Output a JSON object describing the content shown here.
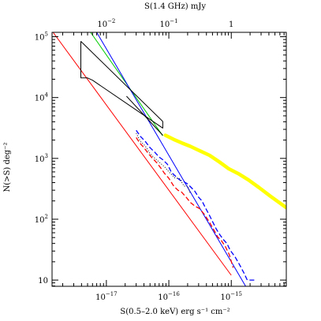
{
  "chart_data": {
    "type": "line",
    "xlabel_bottom": "S(0.5–2.0 keV)   erg s⁻¹ cm⁻²",
    "xlabel_top": "S(1.4 GHz)    mJy",
    "ylabel": "N(>S)   deg⁻²",
    "xscale": "log",
    "yscale": "log",
    "xlim": [
      1.35e-18,
      7.6e-15
    ],
    "ylim": [
      7.9,
      118000
    ],
    "bottom_ticks": [
      {
        "value": 1e-17,
        "base": "10",
        "exp": "−17"
      },
      {
        "value": 1e-16,
        "base": "10",
        "exp": "−16"
      },
      {
        "value": 1e-15,
        "base": "10",
        "exp": "−15"
      }
    ],
    "top_ticks": [
      {
        "value": 1e-17,
        "base": "10",
        "exp": "−2"
      },
      {
        "value": 1e-16,
        "base": "10",
        "exp": "−1"
      },
      {
        "value": 1e-15,
        "label": "1"
      }
    ],
    "left_ticks": [
      {
        "value": 10,
        "label": "10"
      },
      {
        "value": 100,
        "base": "10",
        "exp": "2"
      },
      {
        "value": 1000,
        "base": "10",
        "exp": "3"
      },
      {
        "value": 10000,
        "base": "10",
        "exp": "4"
      },
      {
        "value": 100000,
        "base": "10",
        "exp": "5"
      }
    ],
    "series": [
      {
        "color": "#ffff00",
        "style": "thick",
        "x": [
          8.8e-17,
          1.2e-16,
          1.6e-16,
          2.2e-16,
          3e-16,
          4.5e-16,
          6.5e-16,
          9e-16,
          1.3e-15,
          1.9e-15,
          2.8e-15,
          4.2e-15,
          7.6e-15
        ],
        "y": [
          2400,
          2050,
          1800,
          1580,
          1360,
          1120,
          870,
          680,
          560,
          440,
          330,
          240,
          155
        ]
      },
      {
        "color": "#ff0000",
        "style": "solid",
        "x": [
          1.4e-18,
          1e-15
        ],
        "y": [
          118000,
          12
        ]
      },
      {
        "color": "#00cc00",
        "style": "solid",
        "x": [
          5.6e-18,
          8e-17
        ],
        "y": [
          118000,
          2350
        ]
      },
      {
        "color": "#0000ff",
        "style": "solid",
        "x": [
          7e-18,
          1.7e-15
        ],
        "y": [
          118000,
          7.9
        ]
      },
      {
        "color": "#000000",
        "style": "solid",
        "x": [
          3.9e-18,
          3.9e-18,
          5e-18,
          6e-18,
          8e-17,
          8e-17
        ],
        "y": [
          84000,
          21000,
          21000,
          19300,
          3150,
          4050
        ]
      },
      {
        "color": "#000000",
        "style": "solid",
        "x": [
          3.9e-18,
          8e-17
        ],
        "y": [
          84000,
          4050
        ]
      },
      {
        "color": "#000000",
        "style": "solid",
        "x": [
          2.1e-17,
          8e-17
        ],
        "y": [
          10500,
          2400
        ]
      },
      {
        "color": "#0000ff",
        "style": "dashed",
        "x": [
          3e-17,
          3.5e-17,
          4.2e-17,
          5e-17,
          6e-17,
          7e-17,
          8e-17,
          9.5e-17,
          1.1e-16,
          1.3e-16,
          1.5e-16,
          1.7e-16,
          2e-16,
          2.3e-16,
          2.6e-16,
          3e-16,
          3.4e-16,
          3.9e-16,
          4.4e-16,
          5e-16,
          5.8e-16,
          6.6e-16,
          7.5e-16,
          8.5e-16,
          9.6e-16,
          1.15e-15,
          1.35e-15,
          1.6e-15,
          1.8e-15,
          2.4e-15
        ],
        "y": [
          2900,
          2300,
          1900,
          1500,
          1250,
          1050,
          950,
          800,
          590,
          500,
          440,
          420,
          380,
          330,
          290,
          230,
          200,
          150,
          120,
          92,
          68,
          55,
          46,
          40,
          31,
          24,
          18,
          13,
          10,
          10
        ]
      },
      {
        "color": "#ff0000",
        "style": "dashed",
        "x": [
          3e-17,
          3.4e-17,
          4e-17,
          4.7e-17,
          5.5e-17,
          6.4e-17,
          7.4e-17,
          8.5e-17,
          1e-16,
          1.2e-16,
          1.4e-16,
          1.6e-16,
          1.9e-16,
          2.2e-16,
          2.6e-16,
          3.1e-16,
          3.7e-16,
          4.4e-16,
          5.2e-16,
          6e-16,
          7e-16,
          8.1e-16,
          9.3e-16,
          1.07e-15
        ],
        "y": [
          2200,
          1800,
          1500,
          1200,
          1000,
          850,
          700,
          570,
          470,
          350,
          300,
          280,
          230,
          190,
          165,
          150,
          120,
          92,
          68,
          52,
          44,
          35,
          26,
          16
        ]
      },
      {
        "color": "#000000",
        "style": "dotted",
        "x": [
          3e-17,
          3.5e-17,
          4.2e-17,
          5e-17,
          6e-17,
          7.2e-17,
          8.6e-17,
          1e-16,
          1.25e-16,
          1.5e-16,
          1.75e-16,
          2e-16,
          2.2e-16,
          2.3e-16
        ],
        "y": [
          2600,
          1900,
          1600,
          1200,
          1000,
          850,
          720,
          600,
          480,
          460,
          350,
          350,
          270,
          270
        ]
      }
    ]
  }
}
